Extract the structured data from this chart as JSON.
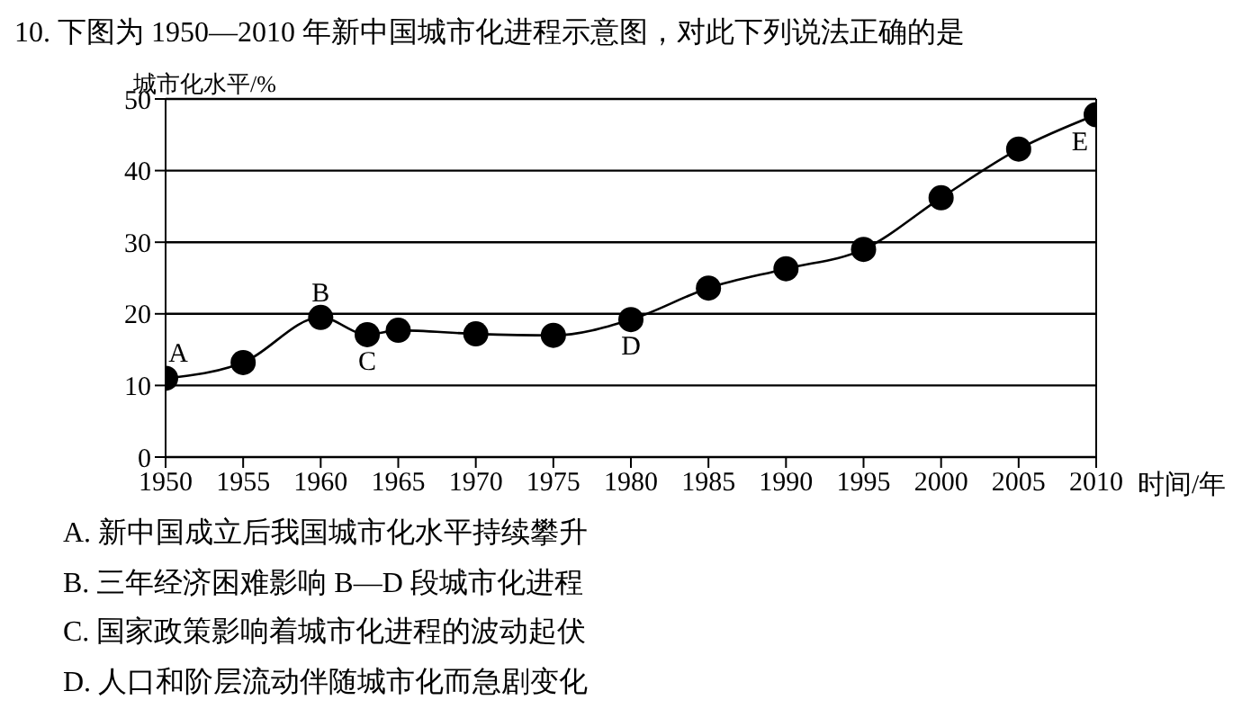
{
  "chart_data": {
    "type": "line",
    "title": "10. 下图为 1950—2010 年新中国城市化进程示意图，对此下列说法正确的是",
    "ylabel": "城市化水平/%",
    "xlabel": "时间/年",
    "x": [
      1950,
      1955,
      1960,
      1963,
      1965,
      1970,
      1975,
      1980,
      1985,
      1990,
      1995,
      2000,
      2005,
      2010
    ],
    "series": [
      {
        "color": "#000000",
        "values": [
          11,
          13.2,
          19.5,
          17.1,
          17.7,
          17.2,
          17.0,
          19.2,
          23.6,
          26.3,
          29.0,
          36.2,
          43.0,
          47.8
        ]
      }
    ],
    "xlim": [
      1950,
      2010
    ],
    "xticks": [
      1950,
      1955,
      1960,
      1965,
      1970,
      1975,
      1980,
      1985,
      1990,
      1995,
      2000,
      2005,
      2010
    ],
    "ylim": [
      0,
      50
    ],
    "yticks": [
      0,
      10,
      20,
      30,
      40,
      50
    ],
    "grid": "y",
    "marker": "circle",
    "line_style": "solid",
    "legend": false,
    "annotations": [
      {
        "text": "A",
        "x": 1950,
        "y": 11
      },
      {
        "text": "B",
        "x": 1960,
        "y": 19.5
      },
      {
        "text": "C",
        "x": 1963,
        "y": 17.1
      },
      {
        "text": "D",
        "x": 1980,
        "y": 19.2
      },
      {
        "text": "E",
        "x": 2010,
        "y": 47.8
      },
      "A. 新中国成立后我国城市化水平持续攀升",
      "B. 三年经济困难影响 B—D 段城市化进程",
      "C. 国家政策影响着城市化进程的波动起伏",
      "D. 人口和阶层流动伴随城市化而急剧变化"
    ]
  }
}
